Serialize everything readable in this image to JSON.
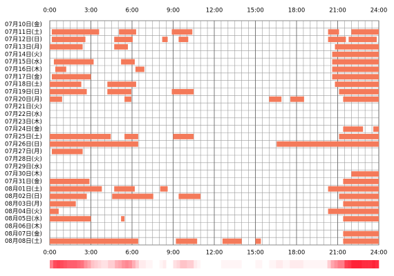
{
  "chart_data": {
    "type": "timeline",
    "color": "#f47a5a",
    "xlim": [
      0,
      24
    ],
    "xticks": [
      {
        "value": 0,
        "label": "0:00"
      },
      {
        "value": 3,
        "label": "3:00"
      },
      {
        "value": 6,
        "label": "6:00"
      },
      {
        "value": 9,
        "label": "9:00"
      },
      {
        "value": 12,
        "label": "12:00"
      },
      {
        "value": 15,
        "label": "15:00"
      },
      {
        "value": 18,
        "label": "18:00"
      },
      {
        "value": 21,
        "label": "21:00"
      },
      {
        "value": 24,
        "label": "24:00"
      }
    ],
    "categories": [
      "07月10日(金)",
      "07月11日(土)",
      "07月12日(日)",
      "07月13日(月)",
      "07月14日(火)",
      "07月15日(水)",
      "07月16日(木)",
      "07月17日(金)",
      "07月18日(土)",
      "07月19日(日)",
      "07月20日(月)",
      "07月21日(火)",
      "07月22日(水)",
      "07月23日(木)",
      "07月24日(金)",
      "07月25日(土)",
      "07月26日(日)",
      "07月27日(月)",
      "07月28日(火)",
      "07月29日(水)",
      "07月30日(木)",
      "07月31日(金)",
      "08月01日(土)",
      "08月02日(日)",
      "08月03日(月)",
      "08月04日(火)",
      "08月05日(水)",
      "08月06日(木)",
      "08月07日(金)",
      "08月08日(土)"
    ],
    "segments": [
      [],
      [
        [
          0.15,
          3.6
        ],
        [
          5.05,
          6.3
        ],
        [
          8.9,
          10.4
        ],
        [
          20.3,
          21.1
        ],
        [
          22,
          24
        ]
      ],
      [
        [
          0.15,
          2.6
        ],
        [
          4.7,
          6.05
        ],
        [
          8.2,
          8.6
        ],
        [
          9.4,
          10.1
        ],
        [
          20.3,
          21.6
        ],
        [
          21.8,
          23.85
        ]
      ],
      [
        [
          0,
          2.4
        ],
        [
          4.7,
          5.7
        ],
        [
          20.8,
          24
        ]
      ],
      [
        [
          20.6,
          24
        ]
      ],
      [
        [
          0.3,
          3.2
        ],
        [
          5.2,
          6.2
        ],
        [
          20.6,
          24
        ]
      ],
      [
        [
          0.4,
          1.2
        ],
        [
          6.25,
          6.9
        ],
        [
          20.6,
          24
        ]
      ],
      [
        [
          0.15,
          3
        ],
        [
          20.6,
          24
        ]
      ],
      [
        [
          0,
          2.3
        ],
        [
          4.2,
          6.3
        ],
        [
          20.8,
          24
        ]
      ],
      [
        [
          0,
          2.7
        ],
        [
          4.2,
          5.95
        ],
        [
          8.9,
          10.5
        ],
        [
          21.1,
          24
        ]
      ],
      [
        [
          0,
          0.9
        ],
        [
          5.45,
          5.95
        ],
        [
          16,
          16.9
        ],
        [
          17.55,
          18.55
        ],
        [
          21.4,
          24
        ]
      ],
      [],
      [],
      [],
      [
        [
          21.4,
          22.85
        ],
        [
          23.6,
          24
        ]
      ],
      [
        [
          0,
          4.45
        ],
        [
          5.45,
          6.45
        ],
        [
          9,
          10.5
        ],
        [
          21.1,
          24
        ]
      ],
      [
        [
          0,
          6.45
        ],
        [
          16.55,
          24
        ]
      ],
      [
        [
          0.15,
          2.4
        ]
      ],
      [],
      [],
      [
        [
          22,
          24
        ]
      ],
      [
        [
          0,
          2.9
        ],
        [
          21.4,
          24
        ]
      ],
      [
        [
          0,
          3.8
        ],
        [
          4.7,
          6.2
        ],
        [
          8.05,
          8.6
        ],
        [
          20.3,
          24
        ]
      ],
      [
        [
          0,
          2.7
        ],
        [
          4.55,
          7.55
        ],
        [
          9.4,
          11
        ],
        [
          21.1,
          24
        ]
      ],
      [
        [
          0,
          1.9
        ],
        [
          21.4,
          24
        ]
      ],
      [
        [
          0,
          0.65
        ],
        [
          20.3,
          24
        ]
      ],
      [
        [
          0,
          3
        ],
        [
          5.2,
          5.45
        ],
        [
          21.4,
          24
        ]
      ],
      [],
      [
        [
          21.4,
          24
        ]
      ],
      [
        [
          0,
          6.45
        ],
        [
          9.2,
          10.75
        ],
        [
          12.6,
          14
        ],
        [
          15,
          15.4
        ],
        [
          21.4,
          24
        ]
      ]
    ]
  }
}
